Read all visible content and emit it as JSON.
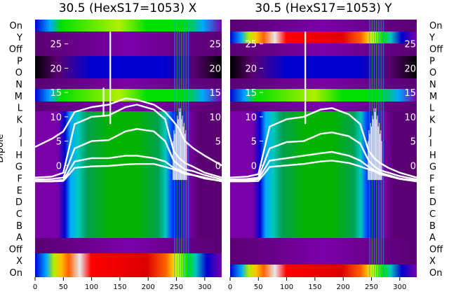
{
  "figure": {
    "ylabel": "Dipole",
    "row_labels": [
      "On",
      "X",
      "Off",
      "A",
      "B",
      "C",
      "D",
      "E",
      "F",
      "G",
      "H",
      "I",
      "J",
      "K",
      "L",
      "M",
      "N",
      "O",
      "P",
      "Off",
      "Y",
      "On"
    ]
  },
  "colors": {
    "background": "#ffffff",
    "trace": "#ffffff",
    "colormap": [
      "#000000",
      "#5a0072",
      "#7a00a8",
      "#0000d0",
      "#0050ff",
      "#00a8ff",
      "#00c8c0",
      "#00a050",
      "#00b400",
      "#00e000",
      "#b0f000",
      "#ffff00",
      "#ffc000",
      "#ff6000",
      "#ff0000",
      "#dd0000",
      "#e8e8e8"
    ]
  },
  "chart_data": [
    {
      "type": "heatmap",
      "title": "30.5 (HexS17=1053) X",
      "xlim": [
        0,
        330
      ],
      "x_ticks": [
        0,
        50,
        100,
        150,
        200,
        250,
        300
      ],
      "ylim": [
        -23,
        30
      ],
      "inner_y_ticks": [
        0,
        5,
        10,
        15,
        20,
        25
      ],
      "rows": [
        "On",
        "X",
        "Off",
        "A",
        "B",
        "C",
        "D",
        "E",
        "F",
        "G",
        "H",
        "I",
        "J",
        "K",
        "L",
        "M",
        "N",
        "O",
        "P",
        "Off",
        "Y",
        "On"
      ],
      "traces": [
        {
          "offset": 0.0,
          "x": [
            0,
            30,
            50,
            70,
            100,
            130,
            160,
            180,
            210,
            230,
            245,
            255,
            265,
            280,
            300,
            330
          ],
          "y": [
            -3.3,
            -3.3,
            -3.2,
            -0.5,
            -0.2,
            -0.1,
            0.2,
            0.3,
            0.3,
            -0.3,
            -0.8,
            -1.2,
            -1.8,
            -2.0,
            -2.5,
            -3.3
          ]
        },
        {
          "offset": 0.0,
          "x": [
            0,
            30,
            50,
            70,
            100,
            130,
            160,
            180,
            210,
            230,
            245,
            255,
            265,
            280,
            300,
            330
          ],
          "y": [
            -3.2,
            -3.2,
            -3.0,
            0.8,
            1.5,
            1.5,
            2.0,
            2.0,
            1.5,
            0.8,
            -0.5,
            -1.0,
            -1.5,
            -2.0,
            -2.7,
            -3.2
          ]
        },
        {
          "offset": 0.0,
          "x": [
            0,
            30,
            50,
            70,
            100,
            130,
            160,
            180,
            210,
            230,
            245,
            255,
            265,
            280,
            300,
            330
          ],
          "y": [
            -2.9,
            -2.8,
            -2.5,
            3.5,
            5.0,
            5.2,
            7.0,
            7.5,
            7.0,
            5.0,
            1.0,
            0.0,
            -0.8,
            -1.2,
            -2.0,
            -2.9
          ]
        },
        {
          "offset": 0.0,
          "x": [
            0,
            30,
            50,
            70,
            100,
            130,
            160,
            180,
            210,
            230,
            245,
            255,
            265,
            280,
            300,
            330
          ],
          "y": [
            -2.5,
            -2.3,
            -1.5,
            8.5,
            10.0,
            10.3,
            12.0,
            12.5,
            11.5,
            9.5,
            3.0,
            1.5,
            0.5,
            -0.3,
            -1.5,
            -2.5
          ]
        },
        {
          "offset": 0.0,
          "x": [
            0,
            30,
            50,
            70,
            100,
            130,
            160,
            180,
            210,
            230,
            245,
            255,
            265,
            280,
            300,
            330
          ],
          "y": [
            3.8,
            5.5,
            7.0,
            11.0,
            12.0,
            12.5,
            13.8,
            13.5,
            12.5,
            11.0,
            9.0,
            7.5,
            5.0,
            3.5,
            2.0,
            0.0
          ]
        }
      ],
      "spikes": [
        {
          "x": 133,
          "y_low": 8.5,
          "y_high": 27.5
        },
        {
          "x": 121,
          "y_low": 10.0,
          "y_high": 16.0
        }
      ]
    },
    {
      "type": "heatmap",
      "title": "30.5 (HexS17=1053) Y",
      "xlim": [
        0,
        330
      ],
      "x_ticks": [
        0,
        50,
        100,
        150,
        200,
        250,
        300
      ],
      "ylim": [
        -23,
        30
      ],
      "inner_y_ticks": [
        0,
        5,
        10,
        15,
        20,
        25
      ],
      "rows": [
        "On",
        "X",
        "Off",
        "A",
        "B",
        "C",
        "D",
        "E",
        "F",
        "G",
        "H",
        "I",
        "J",
        "K",
        "L",
        "M",
        "N",
        "O",
        "P",
        "Off",
        "Y",
        "On"
      ],
      "traces": [
        {
          "offset": 0.0,
          "x": [
            0,
            30,
            50,
            70,
            100,
            130,
            160,
            180,
            210,
            230,
            245,
            255,
            265,
            280,
            300,
            330
          ],
          "y": [
            -3.3,
            -3.3,
            -3.2,
            -0.3,
            0.0,
            0.3,
            0.8,
            1.0,
            0.5,
            -0.2,
            -0.8,
            -1.2,
            -1.8,
            -2.2,
            -2.8,
            -3.3
          ]
        },
        {
          "offset": 0.0,
          "x": [
            0,
            30,
            50,
            70,
            100,
            130,
            160,
            180,
            210,
            230,
            245,
            255,
            265,
            280,
            300,
            330
          ],
          "y": [
            -3.2,
            -3.1,
            -2.8,
            1.0,
            1.5,
            2.0,
            2.5,
            2.8,
            2.0,
            1.0,
            -0.3,
            -1.0,
            -1.5,
            -2.0,
            -2.7,
            -3.2
          ]
        },
        {
          "offset": 0.0,
          "x": [
            0,
            30,
            50,
            70,
            100,
            130,
            160,
            180,
            210,
            230,
            245,
            255,
            265,
            280,
            300,
            330
          ],
          "y": [
            -2.9,
            -2.8,
            -2.5,
            3.5,
            4.8,
            5.0,
            6.5,
            6.8,
            6.0,
            4.5,
            1.0,
            -0.2,
            -1.0,
            -1.5,
            -2.2,
            -2.9
          ]
        },
        {
          "offset": 0.0,
          "x": [
            0,
            30,
            50,
            70,
            100,
            130,
            160,
            180,
            210,
            230,
            245,
            255,
            265,
            280,
            300,
            330
          ],
          "y": [
            -2.5,
            -2.3,
            -1.8,
            8.0,
            9.5,
            10.0,
            11.5,
            11.8,
            10.5,
            8.5,
            3.0,
            1.5,
            0.5,
            -0.5,
            -1.5,
            -2.5
          ]
        }
      ],
      "spikes": [
        {
          "x": 133,
          "y_low": 8.5,
          "y_high": 27.5
        }
      ]
    }
  ]
}
